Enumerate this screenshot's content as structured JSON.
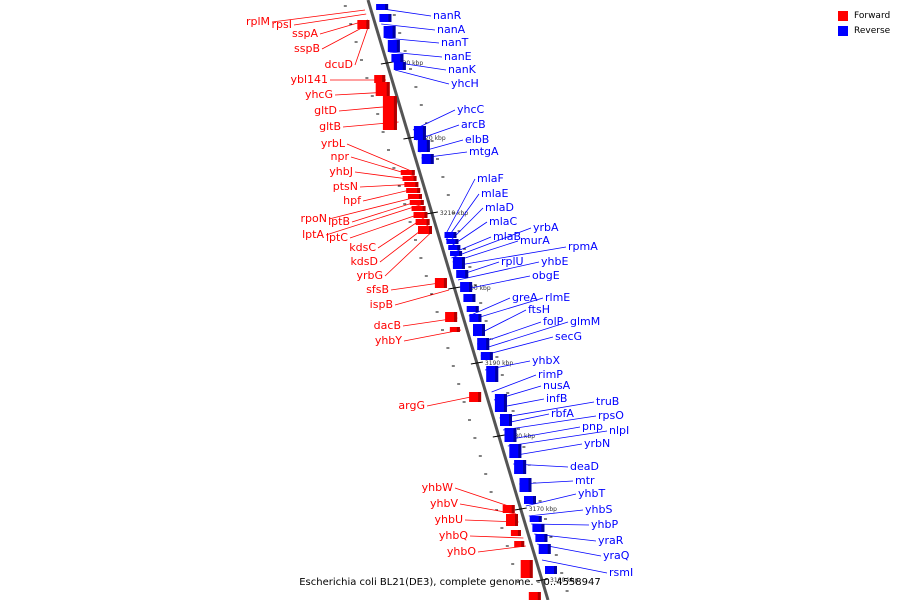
{
  "caption": "Escherichia coli BL21(DE3), complete genome. - 0..4558947",
  "legend": [
    {
      "label": "Forward",
      "color": "#ff0000"
    },
    {
      "label": "Reverse",
      "color": "#0000ff"
    }
  ],
  "colors": {
    "forward": "#ff0000",
    "reverse": "#0000ff",
    "backbone": "#888888"
  },
  "ticks": [
    "3230 kbp",
    "3220 kbp",
    "3210 kbp",
    "3200 kbp",
    "3190 kbp",
    "3180 kbp",
    "3170 kbp",
    "3160 kbp"
  ],
  "forward_genes": [
    "rplM",
    "rpsI",
    "sspA",
    "sspB",
    "dcuD",
    "ybl141",
    "yhcG",
    "gltD",
    "gltB",
    "yrbL",
    "npr",
    "yhbJ",
    "ptsN",
    "hpf",
    "rpoN",
    "lptB",
    "lptA",
    "lptC",
    "kdsC",
    "kdsD",
    "yrbG",
    "sfsB",
    "ispB",
    "dacB",
    "yhbY",
    "argG",
    "yhbW",
    "yhbV",
    "yhbU",
    "yhbQ",
    "yhbO"
  ],
  "reverse_genes": [
    "nanR",
    "nanA",
    "nanT",
    "nanE",
    "nanK",
    "yhcH",
    "yhcC",
    "arcB",
    "elbB",
    "mtgA",
    "mlaF",
    "mlaE",
    "mlaD",
    "mlaC",
    "mlaB",
    "yrbA",
    "murA",
    "rpmA",
    "rplU",
    "yhbE",
    "obgE",
    "greA",
    "rlmE",
    "ftsH",
    "folP",
    "glmM",
    "secG",
    "yhbX",
    "rimP",
    "nusA",
    "infB",
    "truB",
    "rbfA",
    "rpsO",
    "pnp",
    "nlpI",
    "yrbN",
    "deaD",
    "mtr",
    "yhbT",
    "yhbS",
    "yhbP",
    "yraR",
    "yraQ",
    "rsmI"
  ]
}
